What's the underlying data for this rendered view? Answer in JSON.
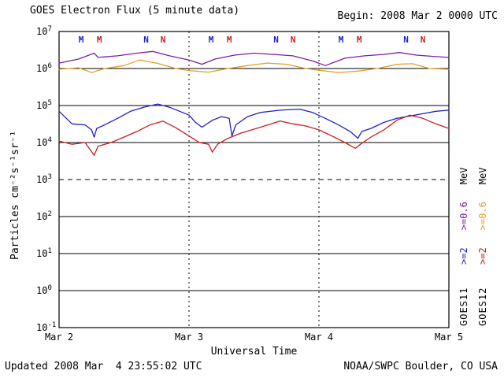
{
  "header": {
    "title": "GOES Electron Flux (5 minute data)",
    "begin_label": "Begin: 2008 Mar 2 0000 UTC"
  },
  "footer": {
    "updated": "Updated 2008 Mar  4 23:55:02 UTC",
    "credit": "NOAA/SWPC Boulder, CO USA"
  },
  "y_axis_label": "Particles cm⁻²s⁻¹sr⁻¹",
  "right_legend": {
    "goes11": {
      "gt2": ">=2",
      "gt06": ">=0.6",
      "mev": "MeV",
      "sat": "GOES11"
    },
    "goes12": {
      "gt2": ">=2",
      "gt06": ">=0.6",
      "mev": "MeV",
      "sat": "GOES12"
    }
  },
  "colors": {
    "goes11_gt2": "#2020c8",
    "goes12_gt2": "#c81e1e",
    "goes11_gt06": "#7a1ea0",
    "goes12_gt06": "#e4a028",
    "axis": "#000000",
    "background": "#ffffff"
  },
  "chart_data": {
    "type": "line",
    "title": "GOES Electron Flux (5 minute data)",
    "xlabel": "Universal Time",
    "ylabel": "Particles cm-2 s-1 sr-1",
    "x_range_days": [
      0,
      3
    ],
    "y_log_range_exponents": [
      -1,
      7
    ],
    "grid": "horizontal decades, dashed at 10^3, dotted vertical day boundaries",
    "x_ticks": [
      {
        "day": 0,
        "label": "Mar 2"
      },
      {
        "day": 1,
        "label": "Mar 3"
      },
      {
        "day": 2,
        "label": "Mar 4"
      },
      {
        "day": 3,
        "label": "Mar 5"
      }
    ],
    "y_exponents": [
      7,
      6,
      5,
      4,
      3,
      2,
      1,
      0,
      -1
    ],
    "dashed_exponent": 3,
    "day_boundaries": [
      1,
      2
    ],
    "markers": [
      {
        "letter": "M",
        "day": 0.17,
        "color_key": "goes11_gt2"
      },
      {
        "letter": "M",
        "day": 0.31,
        "color_key": "goes12_gt2"
      },
      {
        "letter": "N",
        "day": 0.67,
        "color_key": "goes11_gt2"
      },
      {
        "letter": "N",
        "day": 0.8,
        "color_key": "goes12_gt2"
      },
      {
        "letter": "M",
        "day": 1.17,
        "color_key": "goes11_gt2"
      },
      {
        "letter": "M",
        "day": 1.31,
        "color_key": "goes12_gt2"
      },
      {
        "letter": "N",
        "day": 1.67,
        "color_key": "goes11_gt2"
      },
      {
        "letter": "N",
        "day": 1.8,
        "color_key": "goes12_gt2"
      },
      {
        "letter": "M",
        "day": 2.17,
        "color_key": "goes11_gt2"
      },
      {
        "letter": "M",
        "day": 2.31,
        "color_key": "goes12_gt2"
      },
      {
        "letter": "N",
        "day": 2.67,
        "color_key": "goes11_gt2"
      },
      {
        "letter": "N",
        "day": 2.8,
        "color_key": "goes12_gt2"
      }
    ],
    "series": [
      {
        "name": "GOES11 >=0.6 MeV",
        "satellite": "GOES11",
        "energy": ">=0.6 MeV",
        "color_key": "goes11_gt06",
        "x": [
          0.0,
          0.15,
          0.27,
          0.3,
          0.45,
          0.6,
          0.72,
          0.85,
          1.0,
          1.1,
          1.2,
          1.35,
          1.5,
          1.65,
          1.8,
          1.95,
          2.05,
          2.2,
          2.35,
          2.5,
          2.62,
          2.75,
          2.9,
          3.0
        ],
        "y": [
          1400000,
          1800000,
          2600000,
          2000000,
          2200000,
          2600000,
          2900000,
          2200000,
          1700000,
          1300000,
          1800000,
          2300000,
          2600000,
          2400000,
          2200000,
          1600000,
          1200000,
          1900000,
          2200000,
          2400000,
          2700000,
          2300000,
          2100000,
          2000000
        ]
      },
      {
        "name": "GOES12 >=0.6 MeV",
        "satellite": "GOES12",
        "energy": ">=0.6 MeV",
        "color_key": "goes12_gt06",
        "x": [
          0.0,
          0.15,
          0.25,
          0.35,
          0.5,
          0.62,
          0.75,
          0.9,
          1.0,
          1.15,
          1.3,
          1.45,
          1.6,
          1.75,
          1.9,
          2.0,
          2.15,
          2.3,
          2.45,
          2.6,
          2.72,
          2.85,
          3.0
        ],
        "y": [
          950000,
          1050000,
          780000,
          1000000,
          1200000,
          1700000,
          1400000,
          1000000,
          880000,
          800000,
          1000000,
          1200000,
          1400000,
          1300000,
          1000000,
          900000,
          780000,
          850000,
          1000000,
          1300000,
          1350000,
          1000000,
          950000
        ]
      },
      {
        "name": "GOES11 >=2 MeV",
        "satellite": "GOES11",
        "energy": ">=2 MeV",
        "color_key": "goes11_gt2",
        "x": [
          0.0,
          0.1,
          0.2,
          0.25,
          0.27,
          0.29,
          0.35,
          0.45,
          0.55,
          0.65,
          0.76,
          0.85,
          0.95,
          1.0,
          1.05,
          1.1,
          1.18,
          1.25,
          1.31,
          1.33,
          1.36,
          1.45,
          1.55,
          1.7,
          1.85,
          1.95,
          2.05,
          2.15,
          2.24,
          2.3,
          2.33,
          2.4,
          2.5,
          2.6,
          2.7,
          2.8,
          2.9,
          3.0
        ],
        "y": [
          70000,
          32000,
          30000,
          22000,
          14000,
          24000,
          30000,
          45000,
          70000,
          90000,
          110000,
          90000,
          65000,
          55000,
          35000,
          26000,
          40000,
          50000,
          45000,
          15000,
          30000,
          50000,
          65000,
          75000,
          80000,
          65000,
          45000,
          30000,
          20000,
          13000,
          20000,
          24000,
          35000,
          45000,
          52000,
          60000,
          70000,
          75000
        ]
      },
      {
        "name": "GOES12 >=2 MeV",
        "satellite": "GOES12",
        "energy": ">=2 MeV",
        "color_key": "goes12_gt2",
        "x": [
          0.0,
          0.1,
          0.2,
          0.27,
          0.3,
          0.4,
          0.5,
          0.6,
          0.7,
          0.8,
          0.9,
          1.0,
          1.08,
          1.15,
          1.18,
          1.22,
          1.3,
          1.4,
          1.55,
          1.7,
          1.8,
          1.9,
          2.0,
          2.1,
          2.2,
          2.28,
          2.32,
          2.4,
          2.5,
          2.6,
          2.7,
          2.8,
          2.9,
          3.0
        ],
        "y": [
          11000,
          9000,
          10000,
          4500,
          8000,
          10000,
          14000,
          20000,
          30000,
          38000,
          25000,
          15000,
          10000,
          9000,
          5500,
          9000,
          13000,
          18000,
          26000,
          38000,
          32000,
          28000,
          22000,
          15000,
          10000,
          7000,
          9000,
          14000,
          22000,
          40000,
          55000,
          45000,
          32000,
          24000
        ]
      }
    ]
  }
}
